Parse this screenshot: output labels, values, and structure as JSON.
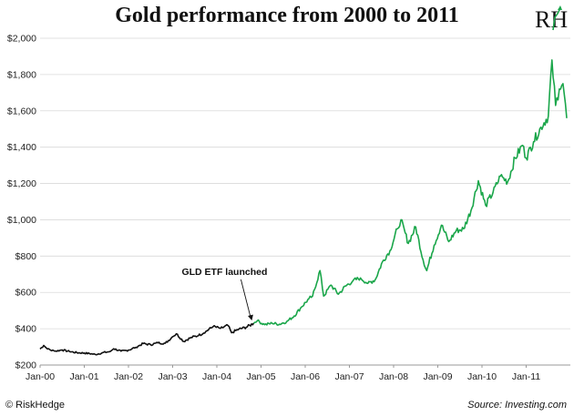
{
  "header": {
    "title": "Gold performance from 2000 to 2011",
    "logo": "RH"
  },
  "footer": {
    "left": "© RiskHedge",
    "right": "Source: Investing.com"
  },
  "colors": {
    "pre_etf": "#111111",
    "post_etf": "#1aa64a",
    "grid": "#d9d9d9"
  },
  "chart_data": {
    "type": "line",
    "title": "Gold performance from 2000 to 2011",
    "xlabel": "",
    "ylabel": "",
    "ylim": [
      200,
      2000
    ],
    "xlim": [
      "2000-01",
      "2011-12"
    ],
    "grid": true,
    "x_ticks": [
      "Jan-00",
      "Jan-01",
      "Jan-02",
      "Jan-03",
      "Jan-04",
      "Jan-05",
      "Jan-06",
      "Jan-07",
      "Jan-08",
      "Jan-09",
      "Jan-10",
      "Jan-11"
    ],
    "y_ticks": [
      "$200",
      "$400",
      "$600",
      "$800",
      "$1,000",
      "$1,200",
      "$1,400",
      "$1,600",
      "$1,800",
      "$2,000"
    ],
    "annotation": {
      "text": "GLD ETF launched",
      "date": "2004-11"
    },
    "series": [
      {
        "color": "#111111",
        "points": [
          [
            "2000-01",
            288
          ],
          [
            "2000-02",
            308
          ],
          [
            "2000-03",
            288
          ],
          [
            "2000-05",
            276
          ],
          [
            "2000-07",
            283
          ],
          [
            "2000-09",
            274
          ],
          [
            "2000-11",
            268
          ],
          [
            "2001-01",
            266
          ],
          [
            "2001-03",
            262
          ],
          [
            "2001-04",
            258
          ],
          [
            "2001-06",
            268
          ],
          [
            "2001-08",
            274
          ],
          [
            "2001-09",
            290
          ],
          [
            "2001-11",
            276
          ],
          [
            "2002-01",
            282
          ],
          [
            "2002-03",
            298
          ],
          [
            "2002-05",
            318
          ],
          [
            "2002-07",
            312
          ],
          [
            "2002-09",
            322
          ],
          [
            "2002-11",
            320
          ],
          [
            "2003-01",
            356
          ],
          [
            "2003-02",
            372
          ],
          [
            "2003-04",
            330
          ],
          [
            "2003-06",
            352
          ],
          [
            "2003-08",
            362
          ],
          [
            "2003-10",
            385
          ],
          [
            "2003-12",
            412
          ],
          [
            "2004-02",
            402
          ],
          [
            "2004-04",
            418
          ],
          [
            "2004-05",
            378
          ],
          [
            "2004-07",
            398
          ],
          [
            "2004-09",
            408
          ],
          [
            "2004-11",
            430
          ]
        ]
      },
      {
        "color": "#1aa64a",
        "points": [
          [
            "2004-11",
            430
          ],
          [
            "2004-12",
            444
          ],
          [
            "2005-02",
            422
          ],
          [
            "2005-04",
            430
          ],
          [
            "2005-06",
            425
          ],
          [
            "2005-08",
            440
          ],
          [
            "2005-10",
            470
          ],
          [
            "2005-12",
            520
          ],
          [
            "2006-02",
            565
          ],
          [
            "2006-03",
            580
          ],
          [
            "2006-05",
            720
          ],
          [
            "2006-06",
            580
          ],
          [
            "2006-08",
            640
          ],
          [
            "2006-10",
            590
          ],
          [
            "2006-12",
            635
          ],
          [
            "2007-02",
            665
          ],
          [
            "2007-04",
            680
          ],
          [
            "2007-06",
            650
          ],
          [
            "2007-08",
            670
          ],
          [
            "2007-10",
            770
          ],
          [
            "2007-12",
            830
          ],
          [
            "2008-02",
            950
          ],
          [
            "2008-03",
            1000
          ],
          [
            "2008-05",
            870
          ],
          [
            "2008-07",
            960
          ],
          [
            "2008-09",
            780
          ],
          [
            "2008-10",
            720
          ],
          [
            "2008-12",
            860
          ],
          [
            "2009-02",
            970
          ],
          [
            "2009-04",
            880
          ],
          [
            "2009-06",
            940
          ],
          [
            "2009-08",
            950
          ],
          [
            "2009-10",
            1050
          ],
          [
            "2009-12",
            1215
          ],
          [
            "2010-02",
            1080
          ],
          [
            "2010-04",
            1150
          ],
          [
            "2010-06",
            1240
          ],
          [
            "2010-08",
            1210
          ],
          [
            "2010-10",
            1340
          ],
          [
            "2010-12",
            1410
          ],
          [
            "2011-01",
            1340
          ],
          [
            "2011-03",
            1430
          ],
          [
            "2011-05",
            1510
          ],
          [
            "2011-07",
            1570
          ],
          [
            "2011-08",
            1880
          ],
          [
            "2011-09",
            1630
          ],
          [
            "2011-10",
            1720
          ],
          [
            "2011-11",
            1750
          ],
          [
            "2011-12",
            1560
          ]
        ]
      }
    ]
  }
}
